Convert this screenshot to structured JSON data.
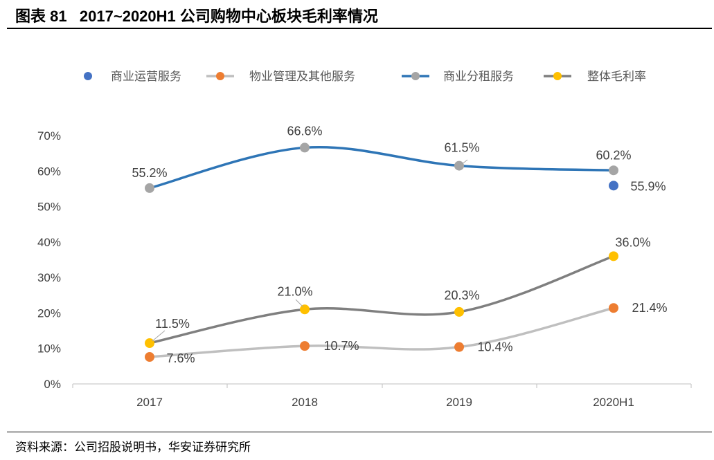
{
  "header": {
    "title": "图表 81   2017~2020H1 公司购物中心板块毛利率情况"
  },
  "footer": {
    "source": "资料来源：公司招股说明书，华安证券研究所"
  },
  "chart_data": {
    "type": "line",
    "title": "",
    "xlabel": "",
    "ylabel": "",
    "categories": [
      "2017",
      "2018",
      "2019",
      "2020H1"
    ],
    "ylim": [
      0,
      70
    ],
    "yticks": [
      "0%",
      "10%",
      "20%",
      "30%",
      "40%",
      "50%",
      "60%",
      "70%"
    ],
    "grid": false,
    "legend_position": "top",
    "series": [
      {
        "name": "商业运营服务",
        "values": [
          null,
          null,
          null,
          55.9
        ],
        "labels": [
          "",
          "",
          "",
          "55.9%"
        ],
        "line_color": null,
        "marker_color": "#4472C4"
      },
      {
        "name": "物业管理及其他服务",
        "values": [
          7.6,
          10.7,
          10.4,
          21.4
        ],
        "labels": [
          "7.6%",
          "10.7%",
          "10.4%",
          "21.4%"
        ],
        "line_color": "#BFBFBF",
        "marker_color": "#ED7D31"
      },
      {
        "name": "商业分租服务",
        "values": [
          55.2,
          66.6,
          61.5,
          60.2
        ],
        "labels": [
          "55.2%",
          "66.6%",
          "61.5%",
          "60.2%"
        ],
        "line_color": "#2E75B6",
        "marker_color": "#A5A5A5"
      },
      {
        "name": "整体毛利率",
        "values": [
          11.5,
          21.0,
          20.3,
          36.0
        ],
        "labels": [
          "11.5%",
          "21.0%",
          "20.3%",
          "36.0%"
        ],
        "line_color": "#7F7F7F",
        "marker_color": "#FFC000"
      }
    ]
  }
}
